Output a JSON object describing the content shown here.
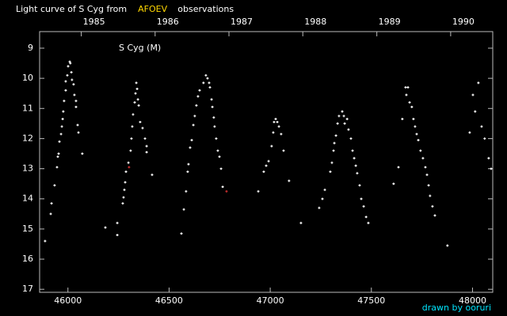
{
  "chart_data": {
    "type": "scatter",
    "title_parts": [
      {
        "text": "Light curve of S Cyg from",
        "color": "#ffffff"
      },
      {
        "text": "AFOEV",
        "color": "#ffd700"
      },
      {
        "text": "observations",
        "color": "#ffffff"
      }
    ],
    "annotation": "S Cyg (M)",
    "credit": "drawn by ooruri",
    "credit_color": "#00e5ff",
    "xlim": [
      45860,
      48100
    ],
    "xticks": [
      46000,
      46500,
      47000,
      47500,
      48000
    ],
    "x2ticks": [
      {
        "value": 46066,
        "label": "1985"
      },
      {
        "value": 46431,
        "label": "1986"
      },
      {
        "value": 46796,
        "label": "1987"
      },
      {
        "value": 47161,
        "label": "1988"
      },
      {
        "value": 47527,
        "label": "1989"
      },
      {
        "value": 47892,
        "label": "1990"
      }
    ],
    "ylim": [
      8.45,
      17.1
    ],
    "y_inverted": true,
    "yticks": [
      9,
      10,
      11,
      12,
      13,
      14,
      15,
      16,
      17
    ],
    "series": [
      {
        "color": "#ffffff",
        "x": [
          45887,
          45915,
          45919,
          45934,
          45946,
          45950,
          45954,
          45958,
          45966,
          45970,
          45974,
          45977,
          45981,
          45989,
          45989,
          45997,
          46001,
          46009,
          46012,
          46017,
          46020,
          46028,
          46032,
          46040,
          46040,
          46048,
          46052,
          46071,
          46185,
          46244,
          46244,
          46271,
          46275,
          46279,
          46283,
          46287,
          46299,
          46310,
          46314,
          46318,
          46322,
          46330,
          46334,
          46338,
          46342,
          46346,
          46350,
          46357,
          46369,
          46381,
          46389,
          46389,
          46416,
          46561,
          46573,
          46584,
          46592,
          46596,
          46604,
          46612,
          46620,
          46627,
          46635,
          46643,
          46651,
          46670,
          46682,
          46690,
          46698,
          46702,
          46710,
          46714,
          46721,
          46725,
          46733,
          46741,
          46749,
          46757,
          46765,
          46941,
          46968,
          46980,
          46992,
          47007,
          47015,
          47019,
          47027,
          47035,
          47043,
          47054,
          47066,
          47093,
          47152,
          47242,
          47258,
          47270,
          47297,
          47305,
          47313,
          47317,
          47325,
          47333,
          47340,
          47356,
          47364,
          47368,
          47380,
          47387,
          47399,
          47407,
          47415,
          47423,
          47430,
          47442,
          47450,
          47462,
          47474,
          47485,
          47610,
          47634,
          47653,
          47669,
          47673,
          47681,
          47689,
          47700,
          47708,
          47716,
          47724,
          47732,
          47743,
          47755,
          47767,
          47775,
          47783,
          47790,
          47802,
          47814,
          47876,
          47986,
          48002,
          48013,
          48029,
          48045,
          48060,
          48080,
          48092
        ],
        "values": [
          15.4,
          14.5,
          14.15,
          13.55,
          12.95,
          12.6,
          12.5,
          12.1,
          11.85,
          11.6,
          11.35,
          11.1,
          10.75,
          10.4,
          10.1,
          9.9,
          9.6,
          9.45,
          9.5,
          9.8,
          10.05,
          10.2,
          10.55,
          10.75,
          10.95,
          11.55,
          11.8,
          12.5,
          14.95,
          14.8,
          15.2,
          14.15,
          13.95,
          13.7,
          13.45,
          13.1,
          12.8,
          12.4,
          12.0,
          11.6,
          11.2,
          10.8,
          10.5,
          10.15,
          10.35,
          10.7,
          10.9,
          11.45,
          11.65,
          12.0,
          12.25,
          12.45,
          13.2,
          15.15,
          14.35,
          13.75,
          13.1,
          12.85,
          12.3,
          12.05,
          11.55,
          11.25,
          10.9,
          10.6,
          10.4,
          10.15,
          9.9,
          10.0,
          10.15,
          10.3,
          10.7,
          10.95,
          11.3,
          11.6,
          12.0,
          12.4,
          12.6,
          13.0,
          13.6,
          13.75,
          13.1,
          12.9,
          12.75,
          12.25,
          11.8,
          11.45,
          11.35,
          11.45,
          11.6,
          11.85,
          12.4,
          13.4,
          14.8,
          14.3,
          14.0,
          13.7,
          13.1,
          12.8,
          12.4,
          12.15,
          11.9,
          11.5,
          11.25,
          11.1,
          11.25,
          11.5,
          11.35,
          11.7,
          12.0,
          12.4,
          12.65,
          12.9,
          13.15,
          13.55,
          14.0,
          14.25,
          14.6,
          14.8,
          13.5,
          12.95,
          11.35,
          10.3,
          10.55,
          10.3,
          10.8,
          10.95,
          11.35,
          11.6,
          11.85,
          12.05,
          12.4,
          12.65,
          12.95,
          13.2,
          13.55,
          13.9,
          14.25,
          14.55,
          15.55,
          11.8,
          10.55,
          11.1,
          10.15,
          11.6,
          12.0,
          12.65,
          13.0
        ]
      },
      {
        "color": "#d03030",
        "x": [
          46302,
          46784
        ],
        "values": [
          12.95,
          13.75
        ]
      }
    ]
  }
}
